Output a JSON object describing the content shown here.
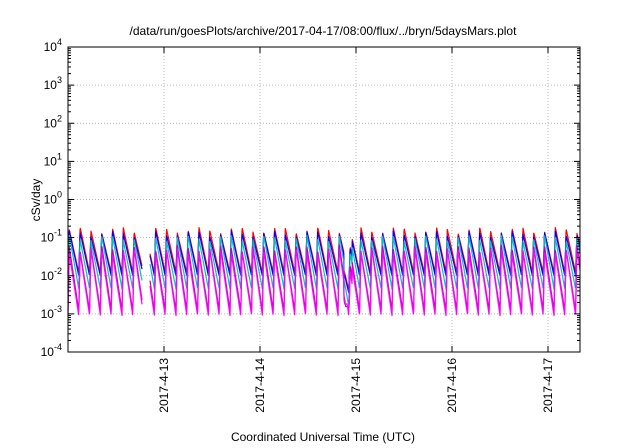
{
  "chart_data": {
    "type": "line",
    "title": "/data/run/goesPlots/archive/2017-04-17/08:00/flux/../bryn/5daysMars.plot",
    "xlabel": "Coordinated Universal Time (UTC)",
    "ylabel": "cSv/day",
    "x_range": [
      "2017-04-12 00:00",
      "2017-04-17 08:00"
    ],
    "x_ticks": [
      "2017-4-13",
      "2017-4-14",
      "2017-4-15",
      "2017-4-16",
      "2017-4-17"
    ],
    "y_scale": "log",
    "ylim": [
      0.0001,
      10000
    ],
    "y_ticks": [
      {
        "base": "10",
        "exp": "-4",
        "value": 0.0001
      },
      {
        "base": "10",
        "exp": "-3",
        "value": 0.001
      },
      {
        "base": "10",
        "exp": "-2",
        "value": 0.01
      },
      {
        "base": "10",
        "exp": "-1",
        "value": 0.1
      },
      {
        "base": "10",
        "exp": "0",
        "value": 1
      },
      {
        "base": "10",
        "exp": "1",
        "value": 10
      },
      {
        "base": "10",
        "exp": "2",
        "value": 100
      },
      {
        "base": "10",
        "exp": "3",
        "value": 1000
      },
      {
        "base": "10",
        "exp": "4",
        "value": 10000
      }
    ],
    "grid": true,
    "legend": "none",
    "colors": [
      "#ff0000",
      "#0000ff",
      "#00c0c0",
      "#c000c0",
      "#ff00ff"
    ],
    "cycle_period_hours": 2.7,
    "series_profile": [
      {
        "color": "#ff0000",
        "peak": 0.16,
        "trough": 0.012
      },
      {
        "color": "#0000ff",
        "peak": 0.13,
        "trough": 0.01
      },
      {
        "color": "#00c0c0",
        "peak": 0.1,
        "trough": 0.0045
      },
      {
        "color": "#c000c0",
        "peak": 0.055,
        "trough": 0.0012
      },
      {
        "color": "#ff00ff",
        "peak": 0.045,
        "trough": 0.0009
      }
    ],
    "gaps": [
      {
        "start": "2017-04-12 18:30",
        "end": "2017-04-12 20:30"
      }
    ],
    "dip": {
      "start": "2017-04-14 21:00",
      "end": "2017-04-14 23:00",
      "min": 0.0007
    }
  }
}
